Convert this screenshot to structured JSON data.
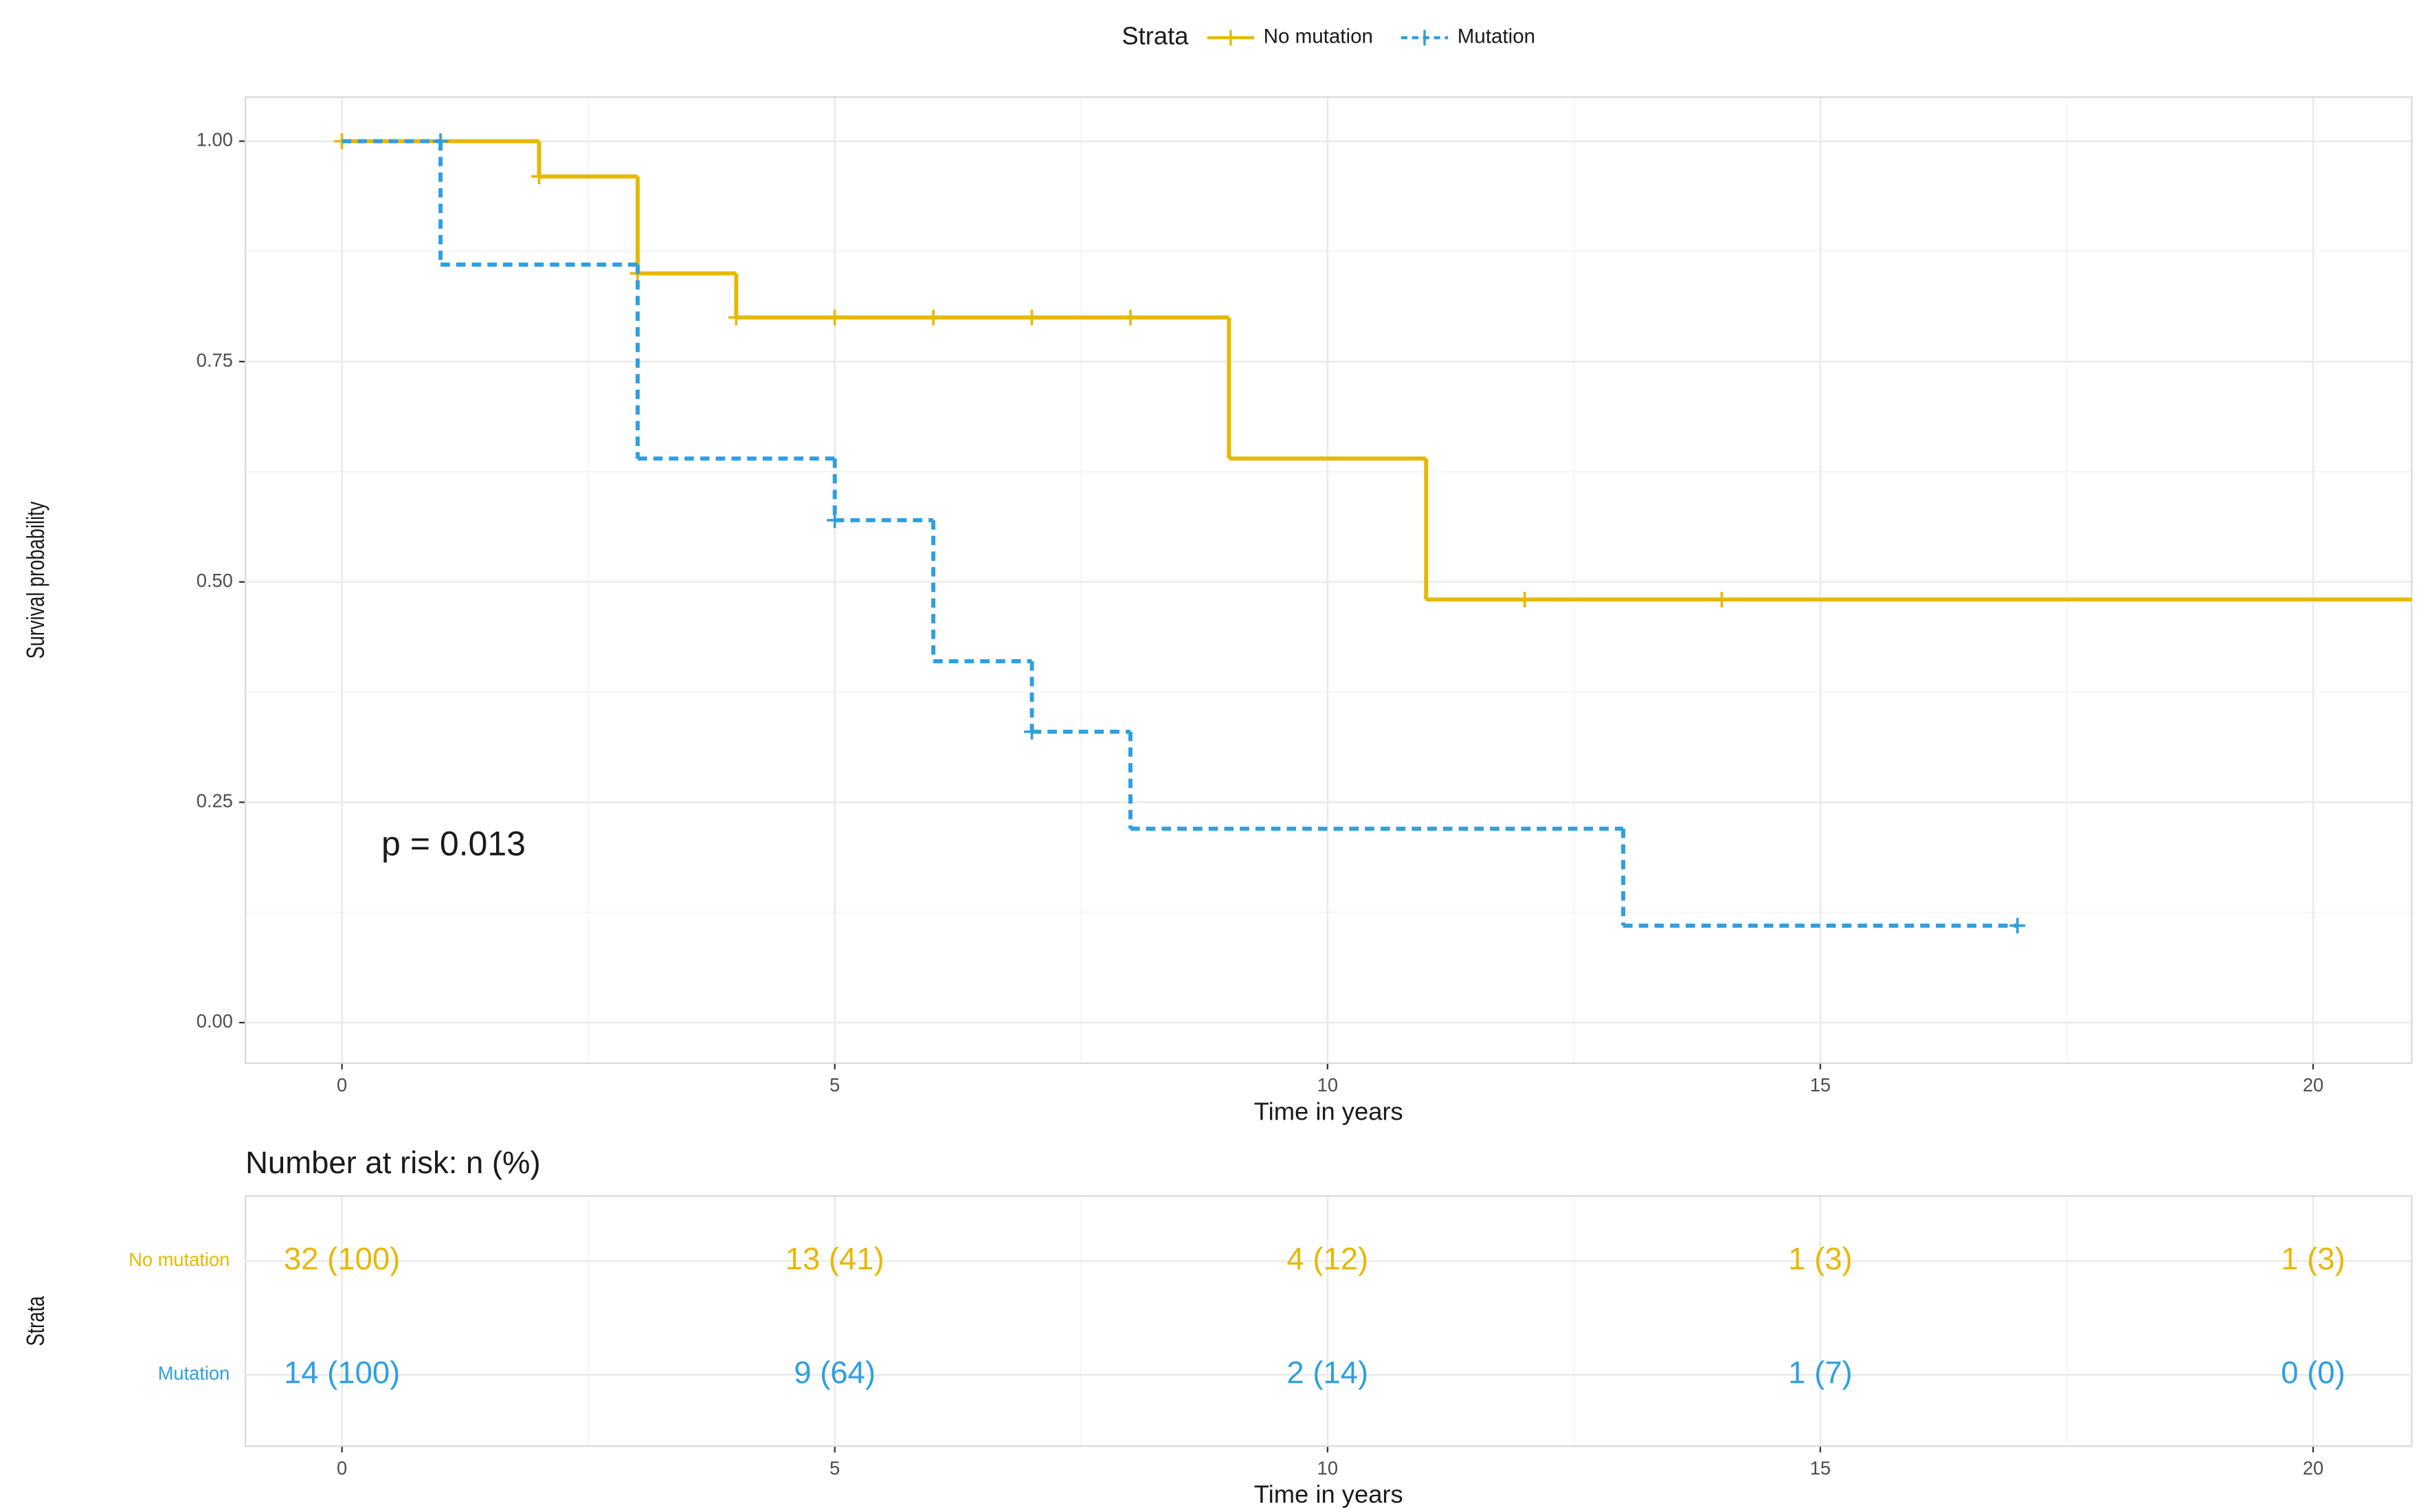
{
  "chart_data": [
    {
      "type": "step",
      "legend_title": "Strata",
      "legend_position": "top",
      "xlabel": "Time in years",
      "ylabel": "Survival probability",
      "annotation": "p = 0.013",
      "annotation_x": 0.4,
      "annotation_y": 0.2,
      "xlim": [
        -0.98,
        21
      ],
      "ylim": [
        -0.046,
        1.05
      ],
      "xticks": [
        0,
        5,
        10,
        15,
        20
      ],
      "yticks": [
        {
          "value": 0,
          "label": "0.00"
        },
        {
          "value": 0.25,
          "label": "0.25"
        },
        {
          "value": 0.5,
          "label": "0.50"
        },
        {
          "value": 0.75,
          "label": "0.75"
        },
        {
          "value": 1,
          "label": "1.00"
        }
      ],
      "grid": true,
      "series": [
        {
          "name": "No mutation",
          "color": "#E7B800",
          "linestyle": "solid",
          "x": [
            0,
            2,
            3,
            4,
            9,
            11,
            21
          ],
          "values": [
            1.0,
            0.96,
            0.85,
            0.8,
            0.64,
            0.48,
            0.48
          ],
          "censor_x": [
            0,
            2,
            3,
            4,
            5,
            6,
            7,
            8,
            12,
            14
          ],
          "censor_values": [
            1.0,
            0.96,
            0.85,
            0.8,
            0.8,
            0.8,
            0.8,
            0.8,
            0.48,
            0.48
          ]
        },
        {
          "name": "Mutation",
          "color": "#2E9FDF",
          "linestyle": "dashed",
          "x": [
            0,
            1,
            3,
            5,
            6,
            7,
            8,
            13,
            17
          ],
          "values": [
            1.0,
            0.86,
            0.64,
            0.57,
            0.41,
            0.33,
            0.22,
            0.11,
            0.11
          ],
          "censor_x": [
            1,
            5,
            7,
            17
          ],
          "censor_values": [
            1.0,
            0.57,
            0.33,
            0.11
          ]
        }
      ]
    },
    {
      "type": "risk_table",
      "title": "Number at risk: n (%)",
      "xlabel": "Time in years",
      "ylabel": "Strata",
      "xlim": [
        -0.98,
        21
      ],
      "xticks": [
        0,
        5,
        10,
        15,
        20
      ],
      "x": [
        0,
        5,
        10,
        15,
        20
      ],
      "series": [
        {
          "name": "No mutation",
          "color": "#E7B800",
          "values": [
            32,
            13,
            4,
            1,
            1
          ],
          "value_labels": [
            "32 (100)",
            "13 (41)",
            "4 (12)",
            "1 (3)",
            "1 (3)"
          ]
        },
        {
          "name": "Mutation",
          "color": "#2E9FDF",
          "values": [
            14,
            9,
            2,
            1,
            0
          ],
          "value_labels": [
            "14 (100)",
            "9 (64)",
            "2 (14)",
            "1 (7)",
            "0 (0)"
          ]
        }
      ]
    }
  ]
}
